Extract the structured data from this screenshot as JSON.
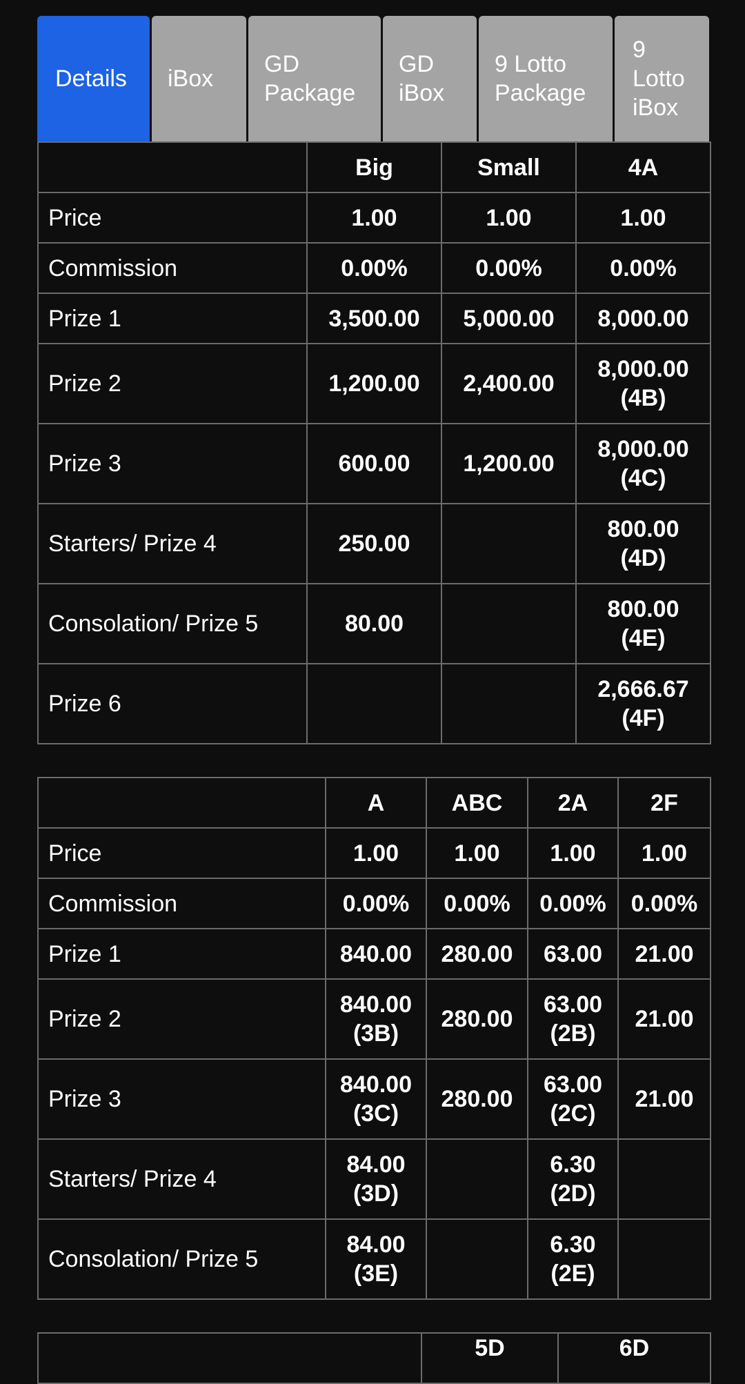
{
  "tabs": [
    "Details",
    "iBox",
    "GD Package",
    "GD iBox",
    "9 Lotto Package",
    "9 Lotto iBox"
  ],
  "active_tab": "Details",
  "table1": {
    "headers": [
      "",
      "Big",
      "Small",
      "4A"
    ],
    "rows": [
      [
        "Price",
        "1.00",
        "1.00",
        "1.00"
      ],
      [
        "Commission",
        "0.00%",
        "0.00%",
        "0.00%"
      ],
      [
        "Prize 1",
        "3,500.00",
        "5,000.00",
        "8,000.00"
      ],
      [
        "Prize 2",
        "1,200.00",
        "2,400.00",
        "8,000.00 (4B)"
      ],
      [
        "Prize 3",
        "600.00",
        "1,200.00",
        "8,000.00 (4C)"
      ],
      [
        "Starters/ Prize 4",
        "250.00",
        "",
        "800.00 (4D)"
      ],
      [
        "Consolation/ Prize 5",
        "80.00",
        "",
        "800.00 (4E)"
      ],
      [
        "Prize 6",
        "",
        "",
        "2,666.67 (4F)"
      ]
    ]
  },
  "table2": {
    "headers": [
      "",
      "A",
      "ABC",
      "2A",
      "2F"
    ],
    "rows": [
      [
        "Price",
        "1.00",
        "1.00",
        "1.00",
        "1.00"
      ],
      [
        "Commission",
        "0.00%",
        "0.00%",
        "0.00%",
        "0.00%"
      ],
      [
        "Prize 1",
        "840.00",
        "280.00",
        "63.00",
        "21.00"
      ],
      [
        "Prize 2",
        "840.00 (3B)",
        "280.00",
        "63.00 (2B)",
        "21.00"
      ],
      [
        "Prize 3",
        "840.00 (3C)",
        "280.00",
        "63.00 (2C)",
        "21.00"
      ],
      [
        "Starters/ Prize 4",
        "84.00 (3D)",
        "",
        "6.30 (2D)",
        ""
      ],
      [
        "Consolation/ Prize 5",
        "84.00 (3E)",
        "",
        "6.30 (2E)",
        ""
      ]
    ]
  },
  "table3": {
    "headers": [
      "",
      "5D",
      "6D"
    ]
  }
}
